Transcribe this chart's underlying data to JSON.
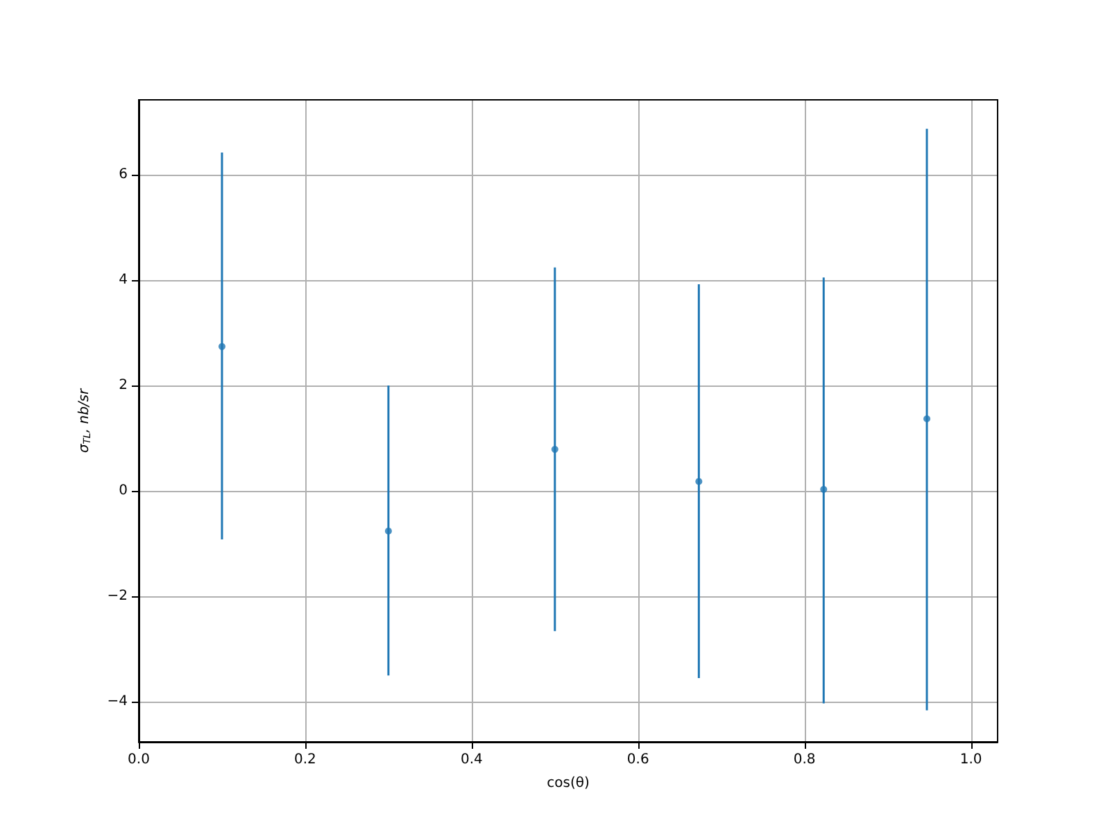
{
  "chart_data": {
    "type": "scatter",
    "xlabel": "cos(θ)",
    "ylabel": "σ$_{TL}$, nb/sr",
    "x": [
      0.1,
      0.3,
      0.5,
      0.673,
      0.823,
      0.947
    ],
    "values": [
      2.74,
      -0.76,
      0.79,
      0.18,
      0.03,
      1.37
    ],
    "errors": [
      [
        -0.92,
        6.42
      ],
      [
        -3.5,
        2.0
      ],
      [
        -2.66,
        4.24
      ],
      [
        -3.55,
        3.92
      ],
      [
        -4.03,
        4.05
      ],
      [
        -4.16,
        6.87
      ]
    ],
    "color": "#1f77b4",
    "marker": "circle",
    "xlim": [
      0,
      1.032
    ],
    "xticks": [
      {
        "value": 0,
        "label": "0.0"
      },
      0.2,
      0.4,
      0.6,
      0.8,
      {
        "value": 1,
        "label": "1.0"
      }
    ],
    "ylim": [
      -4.76,
      7.42
    ],
    "yticks": [
      -4,
      -2,
      0,
      2,
      4,
      6
    ],
    "grid": true
  }
}
